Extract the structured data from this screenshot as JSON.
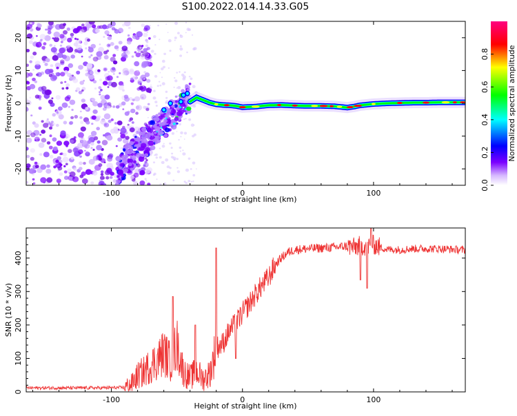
{
  "title": "S100.2022.014.14.33.G05",
  "chart_data": [
    {
      "type": "heatmap",
      "xlabel": "Height of straight line (km)",
      "ylabel": "Frequency (Hz)",
      "xlim": [
        -165,
        170
      ],
      "ylim": [
        -25,
        25
      ],
      "xticks": [
        -100,
        0,
        100
      ],
      "yticks": [
        -20,
        -10,
        0,
        10,
        20
      ],
      "grid": false,
      "colorbar": {
        "label": "Normalized spectral amplitude",
        "range": [
          0,
          1
        ],
        "ticks": [
          "0.0",
          "0.2",
          "0.4",
          "0.6",
          "0.8"
        ],
        "colors": [
          "#ffffff",
          "#7b00ff",
          "#0000ff",
          "#00ffff",
          "#00ff00",
          "#ffff00",
          "#ff0000",
          "#ff0080"
        ]
      },
      "ridge": {
        "x": [
          -40,
          -35,
          -30,
          -25,
          -20,
          -15,
          -10,
          -5,
          0,
          10,
          20,
          30,
          40,
          50,
          60,
          70,
          80,
          85,
          90,
          100,
          110,
          120,
          130,
          140,
          150,
          160,
          170
        ],
        "y": [
          0.5,
          1.8,
          1.0,
          0.2,
          -0.3,
          -0.5,
          -0.6,
          -0.8,
          -1.2,
          -1.0,
          -0.6,
          -0.5,
          -0.7,
          -0.8,
          -0.8,
          -0.9,
          -1.3,
          -1.0,
          -0.6,
          -0.2,
          0.0,
          0.1,
          0.2,
          0.2,
          0.3,
          0.3,
          0.3
        ]
      }
    },
    {
      "type": "line",
      "xlabel": "Height of straight line (km)",
      "ylabel": "SNR (10 * v/v)",
      "xlim": [
        -165,
        170
      ],
      "ylim": [
        0,
        490
      ],
      "xticks": [
        -100,
        0,
        100
      ],
      "yticks": [
        0,
        100,
        200,
        300,
        400
      ],
      "grid": false,
      "color": "#ee3333",
      "series": [
        {
          "x": [
            -165,
            -150,
            -130,
            -110,
            -90,
            -85,
            -80,
            -75,
            -70,
            -65,
            -60,
            -55,
            -50,
            -45,
            -40,
            -35,
            -30,
            -25,
            -20,
            -15,
            -10,
            -5,
            0,
            5,
            10,
            15,
            20,
            25,
            30,
            35,
            40,
            50,
            60,
            70,
            80,
            85,
            90,
            95,
            100,
            110,
            120,
            130,
            140,
            150,
            160,
            170
          ],
          "y": [
            12,
            12,
            12,
            12,
            13,
            22,
            48,
            62,
            80,
            95,
            118,
            90,
            142,
            60,
            42,
            62,
            38,
            55,
            132,
            145,
            182,
            205,
            235,
            262,
            292,
            318,
            342,
            380,
            402,
            418,
            425,
            428,
            430,
            432,
            436,
            432,
            438,
            434,
            440,
            426,
            425,
            428,
            428,
            428,
            426,
            424
          ]
        }
      ],
      "spikes": [
        {
          "x": -53,
          "y": 285
        },
        {
          "x": -36,
          "y": 200
        },
        {
          "x": -20,
          "y": 430
        },
        {
          "x": -5,
          "y": 100
        },
        {
          "x": 90,
          "y": 335
        },
        {
          "x": 95,
          "y": 310
        },
        {
          "x": 98,
          "y": 490
        }
      ]
    }
  ]
}
